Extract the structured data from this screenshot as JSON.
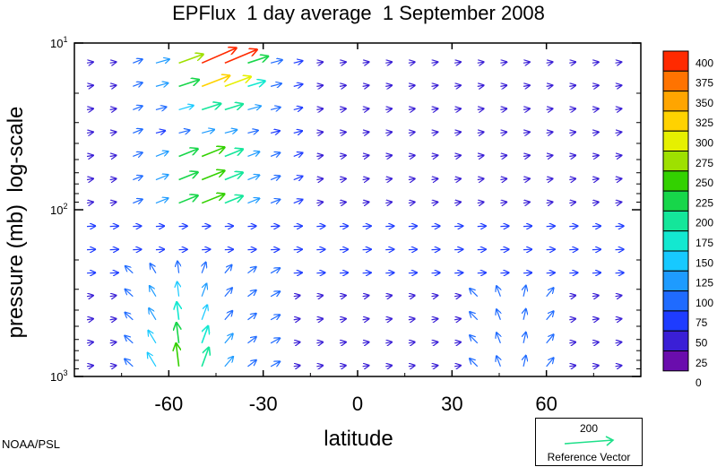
{
  "title": "EPFlux  1 day average  1 September 2008",
  "credit": "NOAA/PSL",
  "colors": {
    "levels": [
      "#6a0dad",
      "#3a1fd6",
      "#1e3cff",
      "#1f6bff",
      "#1e9bff",
      "#17c9ff",
      "#13e8d0",
      "#14e69a",
      "#17d64a",
      "#33d100",
      "#9ee000",
      "#e6f000",
      "#ffd200",
      "#ffa500",
      "#ff7300",
      "#ff2a00"
    ]
  },
  "chart_data": {
    "type": "vector-field",
    "title": "EPFlux  1 day average  1 September 2008",
    "xlabel": "latitude",
    "ylabel": "pressure (mb)  log-scale",
    "xlim": [
      -90,
      90
    ],
    "ylim": [
      1000,
      10
    ],
    "y_scale": "log",
    "x_ticks": [
      "-60",
      "-30",
      "0",
      "30",
      "60"
    ],
    "y_ticks": [
      {
        "base": "10",
        "exp": "1"
      },
      {
        "base": "10",
        "exp": "2"
      },
      {
        "base": "10",
        "exp": "3"
      }
    ],
    "colorbar": {
      "levels": [
        "400",
        "375",
        "350",
        "325",
        "300",
        "275",
        "250",
        "225",
        "200",
        "175",
        "150",
        "125",
        "100",
        "75",
        "50",
        "25",
        "0"
      ]
    },
    "reference_vector": {
      "value": "200",
      "label": "Reference Vector"
    }
  }
}
